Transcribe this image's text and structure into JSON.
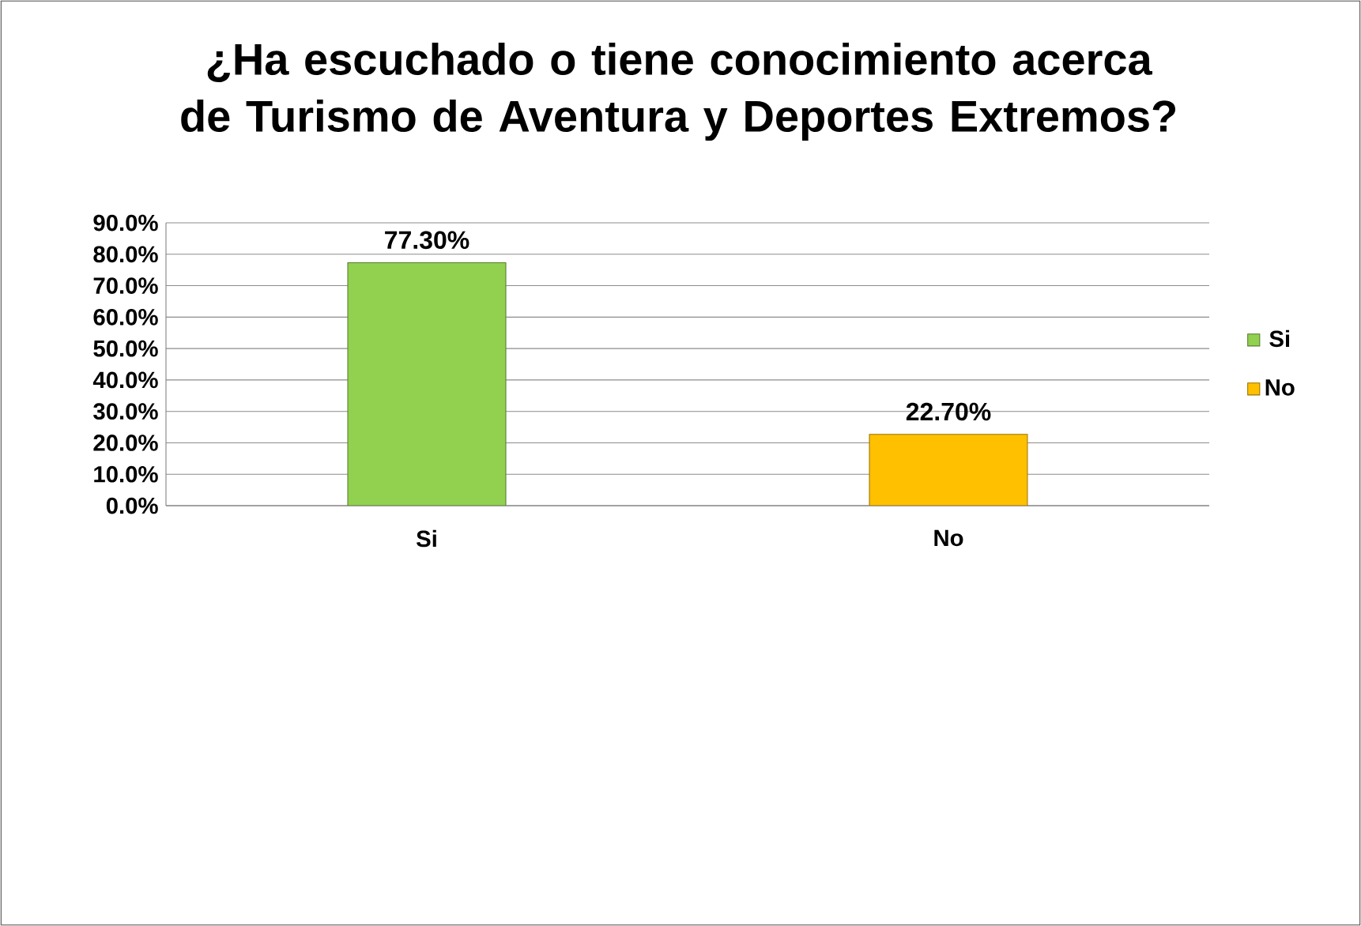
{
  "chart_data": {
    "type": "bar",
    "title": "¿Ha escuchado o tiene conocimiento acerca de Turismo de Aventura y Deportes Extremos?",
    "categories": [
      "Si",
      "No"
    ],
    "series": [
      {
        "name": "Si",
        "color": "#92d050",
        "values": [
          77.3,
          null
        ],
        "value_labels": [
          "77.30%",
          null
        ]
      },
      {
        "name": "No",
        "color": "#ffc000",
        "values": [
          null,
          22.7
        ],
        "value_labels": [
          null,
          "22.70%"
        ]
      }
    ],
    "ylim": [
      0,
      90
    ],
    "yticks": [
      {
        "value": 0,
        "label": "0.0%"
      },
      {
        "value": 10,
        "label": "10.0%"
      },
      {
        "value": 20,
        "label": "20.0%"
      },
      {
        "value": 30,
        "label": "30.0%"
      },
      {
        "value": 40,
        "label": "40.0%"
      },
      {
        "value": 50,
        "label": "50.0%"
      },
      {
        "value": 60,
        "label": "60.0%"
      },
      {
        "value": 70,
        "label": "70.0%"
      },
      {
        "value": 80,
        "label": "80.0%"
      },
      {
        "value": 90,
        "label": "90.0%"
      }
    ],
    "grid": "y",
    "legend": "right"
  }
}
